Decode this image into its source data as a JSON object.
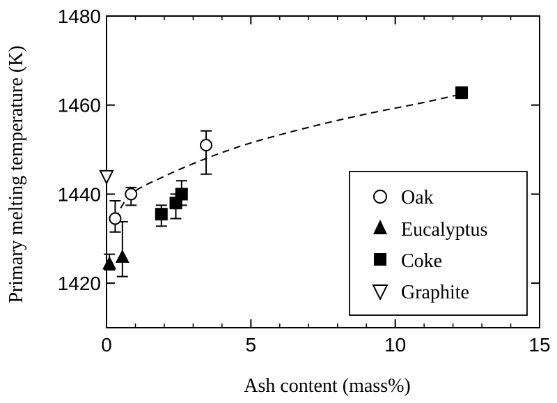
{
  "chart_data": {
    "type": "scatter",
    "xlabel": "Ash content (mass%)",
    "ylabel": "Primary melting temperature (K)",
    "xlim": [
      0,
      15
    ],
    "ylim": [
      1410,
      1480
    ],
    "xticks": [
      0,
      5,
      10,
      15
    ],
    "yticks": [
      1420,
      1440,
      1460,
      1480
    ],
    "x_tick_labels": [
      "0",
      "5",
      "10",
      "15"
    ],
    "y_tick_labels": [
      "1420",
      "1440",
      "1460",
      "1480"
    ],
    "legend_position": "bottom-right",
    "series": [
      {
        "name": "Oak",
        "marker": "open-circle",
        "points": [
          {
            "x": 0.3,
            "y": 1434.5,
            "err_low": 1431.5,
            "err_high": 1438.5
          },
          {
            "x": 0.85,
            "y": 1440.0,
            "err_low": 1437.5,
            "err_high": 1441.5
          },
          {
            "x": 3.45,
            "y": 1451.0,
            "err_low": 1444.5,
            "err_high": 1454.2
          }
        ]
      },
      {
        "name": "Eucalyptus",
        "marker": "filled-triangle-up",
        "points": [
          {
            "x": 0.1,
            "y": 1424.5,
            "err_low": 1423.0,
            "err_high": 1426.5
          },
          {
            "x": 0.55,
            "y": 1426.0,
            "err_low": 1421.5,
            "err_high": 1433.8
          }
        ]
      },
      {
        "name": "Coke",
        "marker": "filled-square",
        "points": [
          {
            "x": 1.9,
            "y": 1435.5,
            "err_low": 1432.8,
            "err_high": 1437.5
          },
          {
            "x": 2.4,
            "y": 1438.0,
            "err_low": 1434.5,
            "err_high": 1440.0
          },
          {
            "x": 2.6,
            "y": 1440.0,
            "err_low": 1437.5,
            "err_high": 1443.0
          },
          {
            "x": 12.3,
            "y": 1462.8,
            "err_low": 1461.5,
            "err_high": 1463.8
          }
        ]
      },
      {
        "name": "Graphite",
        "marker": "open-triangle-down",
        "points": [
          {
            "x": 0.0,
            "y": 1444.0
          }
        ]
      }
    ],
    "trend_lines": [
      {
        "style": "dashed",
        "points": [
          [
            0.3,
            1434.5
          ],
          [
            0.85,
            1440.0
          ],
          [
            2.0,
            1444.0
          ],
          [
            3.45,
            1448.0
          ],
          [
            5,
            1451.5
          ],
          [
            7,
            1455.0
          ],
          [
            9,
            1458.0
          ],
          [
            11,
            1460.6
          ],
          [
            12.3,
            1462.5
          ]
        ]
      }
    ]
  },
  "colors": {
    "ink": "#000000",
    "background": "#ffffff"
  }
}
